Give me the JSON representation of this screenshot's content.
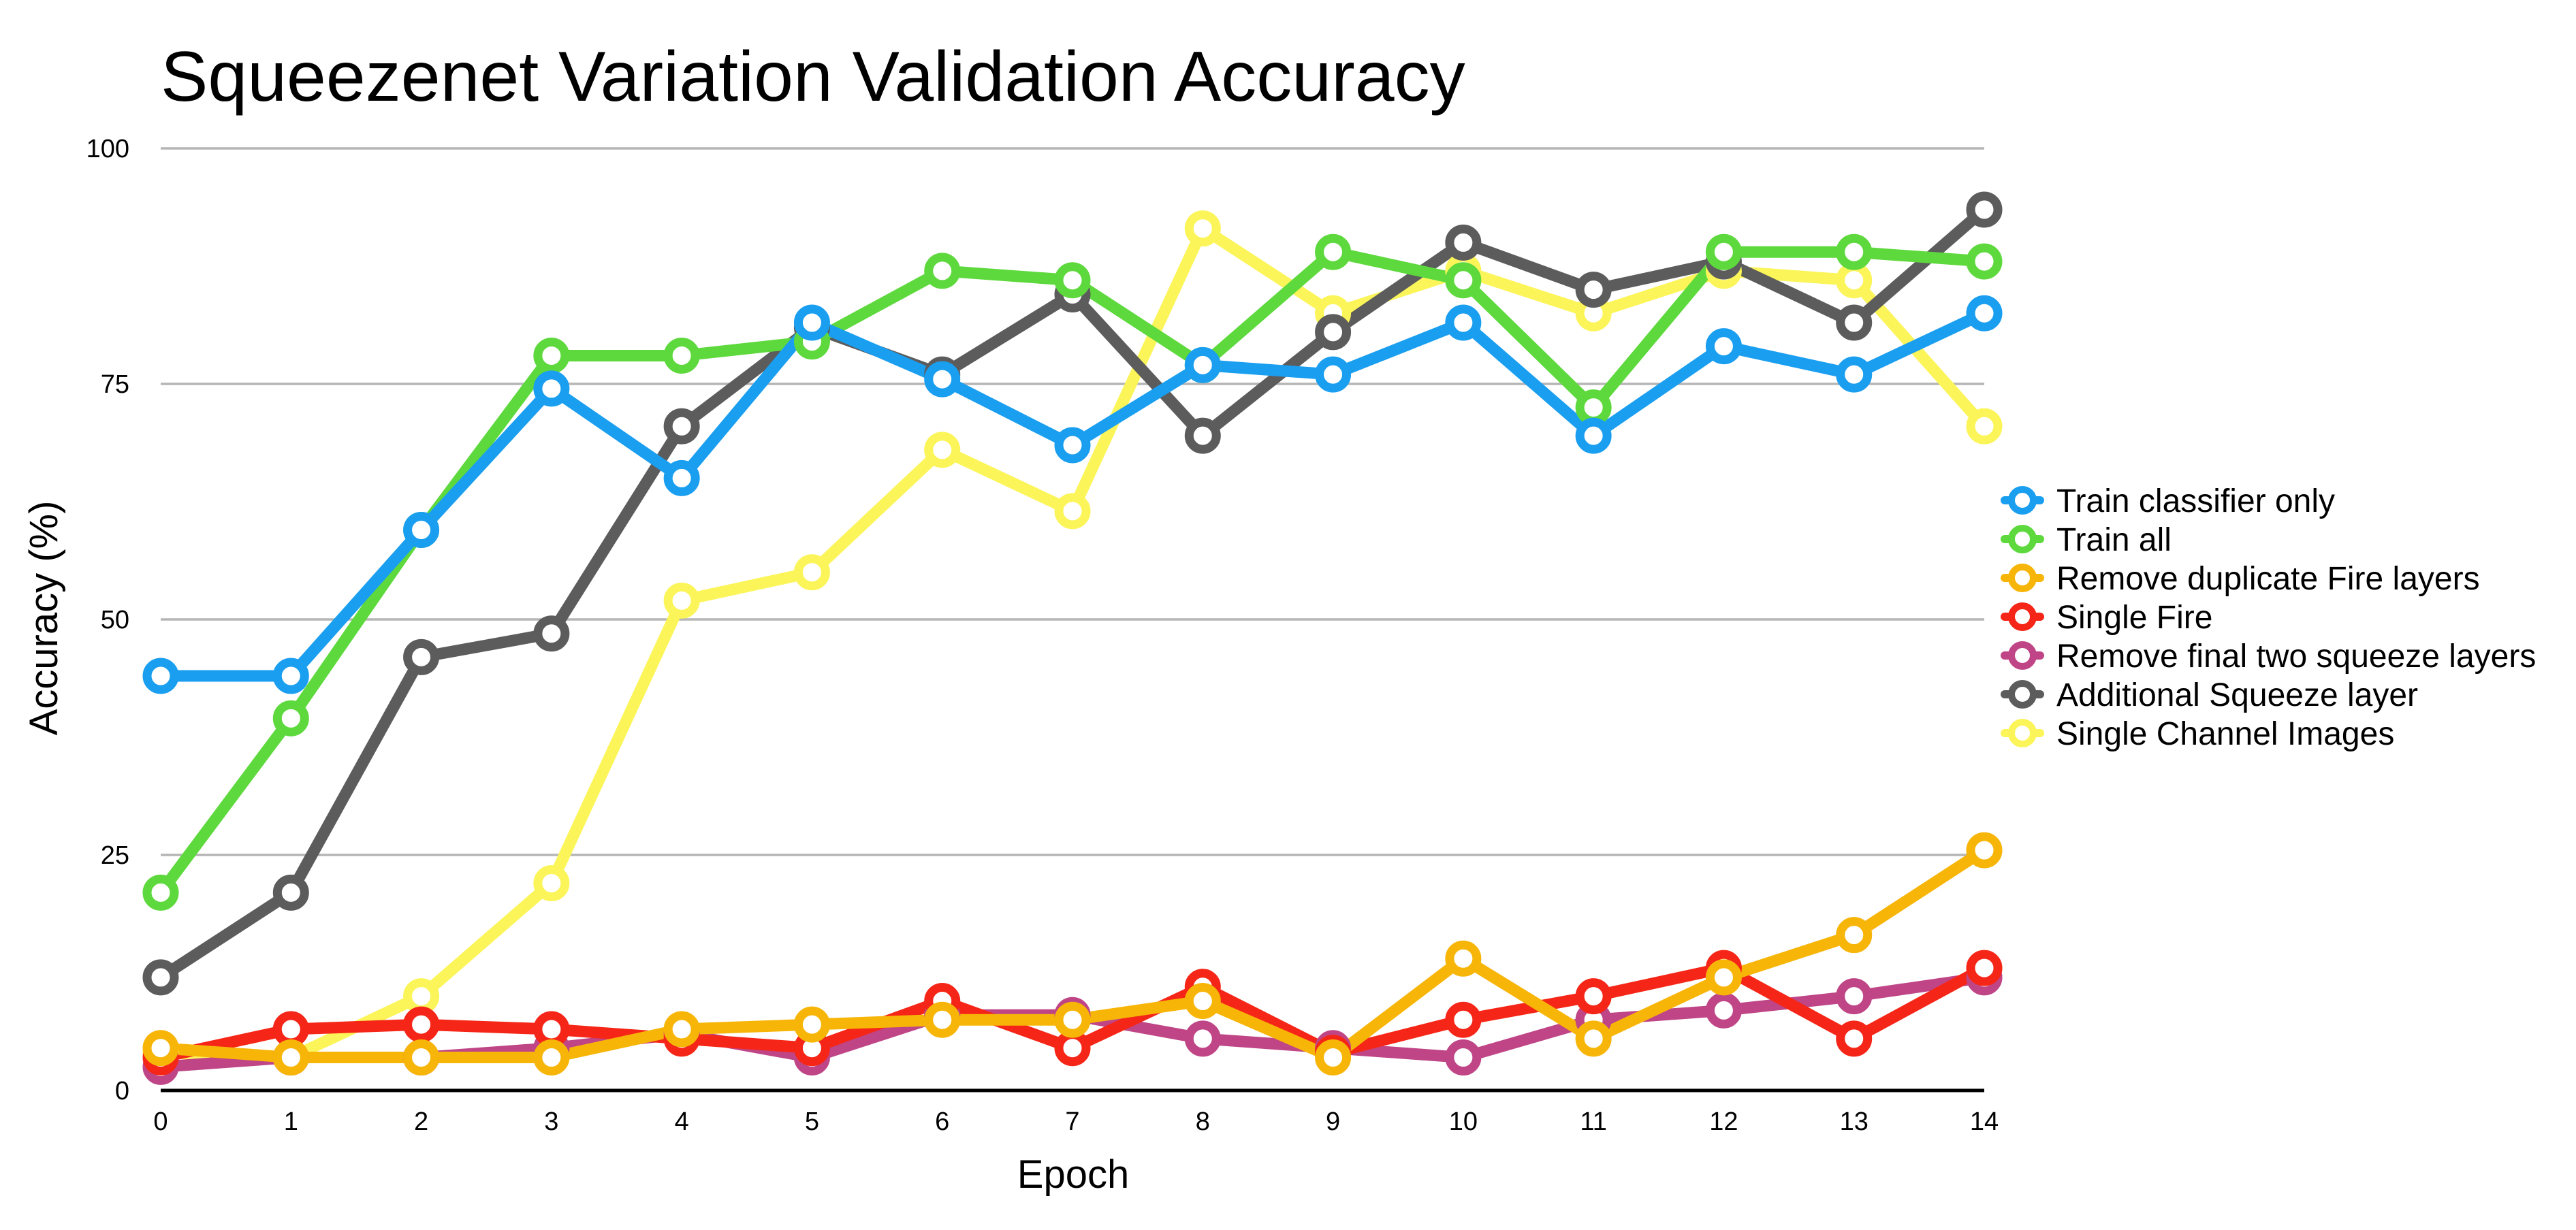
{
  "chart_data": {
    "type": "line",
    "title": "Squeezenet Variation Validation Accuracy",
    "xlabel": "Epoch",
    "ylabel": "Accuracy (%)",
    "x": [
      0,
      1,
      2,
      3,
      4,
      5,
      6,
      7,
      8,
      9,
      10,
      11,
      12,
      13,
      14
    ],
    "yticks": [
      0,
      25,
      50,
      75,
      100
    ],
    "ylim": [
      0,
      100
    ],
    "grid": true,
    "legend_position": "right",
    "series": [
      {
        "name": "Train classifier only",
        "color": "#1a9ef0",
        "values": [
          44,
          44,
          59.5,
          74.5,
          65,
          81.5,
          75.5,
          68.5,
          77,
          76,
          81.5,
          69.5,
          79,
          76,
          82.5
        ]
      },
      {
        "name": "Train all",
        "color": "#5ed93d",
        "values": [
          21,
          39.5,
          59.5,
          78,
          78,
          79.5,
          87,
          86,
          77,
          89,
          86,
          72.5,
          89,
          89,
          88
        ]
      },
      {
        "name": "Remove duplicate Fire layers",
        "color": "#f7b508",
        "values": [
          4.5,
          3.5,
          3.5,
          3.5,
          6.5,
          7,
          7.5,
          7.5,
          9.5,
          3.5,
          14,
          5.5,
          12,
          16.5,
          25.5
        ]
      },
      {
        "name": "Single Fire",
        "color": "#f52617",
        "values": [
          3.5,
          6.5,
          7,
          6.5,
          5.5,
          4.5,
          9.5,
          4.5,
          11,
          4,
          7.5,
          10,
          13,
          5.5,
          13
        ]
      },
      {
        "name": "Remove final two squeeze layers",
        "color": "#bf4586",
        "values": [
          2.5,
          3.5,
          3.5,
          4.5,
          6,
          3.5,
          8,
          8,
          5.5,
          4.5,
          3.5,
          7.5,
          8.5,
          10,
          12
        ]
      },
      {
        "name": "Additional Squeeze layer",
        "color": "#5c5c5c",
        "values": [
          12,
          21,
          46,
          48.5,
          70.5,
          81,
          76,
          84.5,
          69.5,
          80.5,
          90,
          85,
          88,
          81.5,
          93.5
        ]
      },
      {
        "name": "Single Channel Images",
        "color": "#fbf55a",
        "values": [
          4,
          3.5,
          10,
          22,
          52,
          55,
          68,
          61.5,
          91.5,
          82.5,
          87,
          82.5,
          87,
          86,
          70.5
        ]
      }
    ]
  }
}
